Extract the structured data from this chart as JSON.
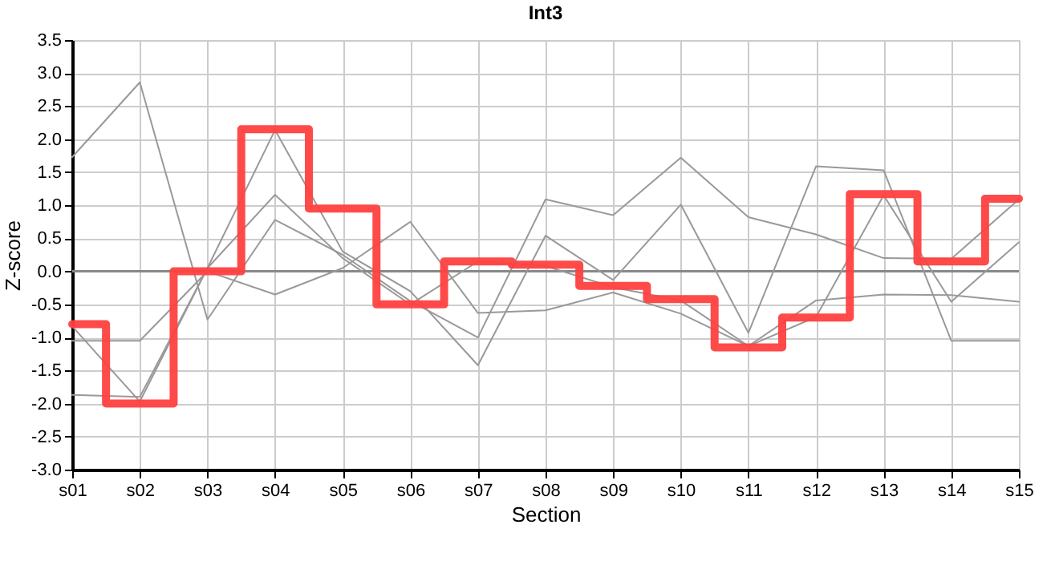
{
  "chart_data": {
    "type": "line",
    "title": "Int3",
    "xlabel": "Section",
    "ylabel": "Z-score",
    "categories": [
      "s01",
      "s02",
      "s03",
      "s04",
      "s05",
      "s06",
      "s07",
      "s08",
      "s09",
      "s10",
      "s11",
      "s12",
      "s13",
      "s14",
      "s15"
    ],
    "series": [
      {
        "color": "#999999",
        "values": [
          1.73,
          2.86,
          -0.73,
          0.78,
          0.25,
          -0.45,
          -1.0,
          1.09,
          0.85,
          1.72,
          0.82,
          0.56,
          0.2,
          0.19,
          1.09
        ]
      },
      {
        "color": "#999999",
        "values": [
          -0.83,
          -1.97,
          0.05,
          2.14,
          0.3,
          -0.3,
          -1.42,
          0.54,
          -0.13,
          1.01,
          -0.93,
          1.59,
          1.53,
          -1.05,
          -1.05
        ]
      },
      {
        "color": "#999999",
        "values": [
          -1.05,
          -1.05,
          0.0,
          -0.35,
          0.05,
          0.75,
          -0.63,
          -0.59,
          -0.32,
          -0.64,
          -1.13,
          -0.44,
          -0.35,
          -0.36,
          -0.46
        ]
      },
      {
        "color": "#999999",
        "values": [
          -1.87,
          -1.9,
          0.05,
          1.16,
          0.2,
          -0.5,
          0.15,
          0.08,
          -0.24,
          -0.44,
          -1.13,
          -0.69,
          1.15,
          -0.46,
          0.44
        ]
      },
      {
        "color": "#ff4040",
        "type": "step",
        "values": [
          -0.8,
          -2.0,
          0.0,
          2.15,
          0.95,
          -0.5,
          0.15,
          0.1,
          -0.22,
          -0.42,
          -1.15,
          -0.7,
          1.17,
          0.15,
          1.1
        ]
      }
    ],
    "ylim": [
      -3.0,
      3.5
    ],
    "yticks": [
      {
        "value": -3,
        "label": "-3.0"
      },
      {
        "value": -2.5,
        "label": "-2.5"
      },
      {
        "value": -2,
        "label": "-2.0"
      },
      {
        "value": -1.5,
        "label": "-1.5"
      },
      {
        "value": -1,
        "label": "-1.0"
      },
      {
        "value": -0.5,
        "label": "-0.5"
      },
      {
        "value": 0,
        "label": "0.0"
      },
      {
        "value": 0.5,
        "label": "0.5"
      },
      {
        "value": 1,
        "label": "1.0"
      },
      {
        "value": 1.5,
        "label": "1.5"
      },
      {
        "value": 2,
        "label": "2.0"
      },
      {
        "value": 2.5,
        "label": "2.5"
      },
      {
        "value": 3,
        "label": "3.0"
      },
      {
        "value": 3.5,
        "label": "3.5"
      }
    ],
    "grid": true,
    "ref_lines": [
      {
        "axis": "y",
        "value": 0,
        "color": "#888888"
      }
    ]
  }
}
